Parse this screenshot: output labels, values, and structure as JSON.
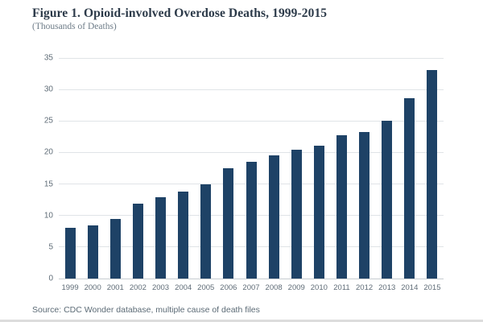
{
  "figure": {
    "title": "Figure 1. Opioid-involved Overdose Deaths, 1999-2015",
    "subtitle": "(Thousands of Deaths)",
    "source": "Source: CDC Wonder database, multiple cause of death files"
  },
  "colors": {
    "bar": "#1e4266",
    "gridline": "#e0e4e7",
    "baseline": "#c6ccd0",
    "title_text": "#2c3a49",
    "tick_text": "#5f6c77"
  },
  "chart_data": {
    "type": "bar",
    "title": "Figure 1. Opioid-involved Overdose Deaths, 1999-2015",
    "subtitle": "(Thousands of Deaths)",
    "categories": [
      "1999",
      "2000",
      "2001",
      "2002",
      "2003",
      "2004",
      "2005",
      "2006",
      "2007",
      "2008",
      "2009",
      "2010",
      "2011",
      "2012",
      "2013",
      "2014",
      "2015"
    ],
    "values": [
      8.1,
      8.4,
      9.5,
      11.9,
      12.9,
      13.8,
      14.9,
      17.5,
      18.5,
      19.6,
      20.4,
      21.1,
      22.8,
      23.2,
      25.1,
      28.6,
      33.1
    ],
    "xlabel": "",
    "ylabel": "Thousands of Deaths",
    "ylim": [
      0,
      35
    ],
    "ytick_step": 5,
    "grid": true,
    "legend_position": "none",
    "source": "Source: CDC Wonder database, multiple cause of death files"
  }
}
